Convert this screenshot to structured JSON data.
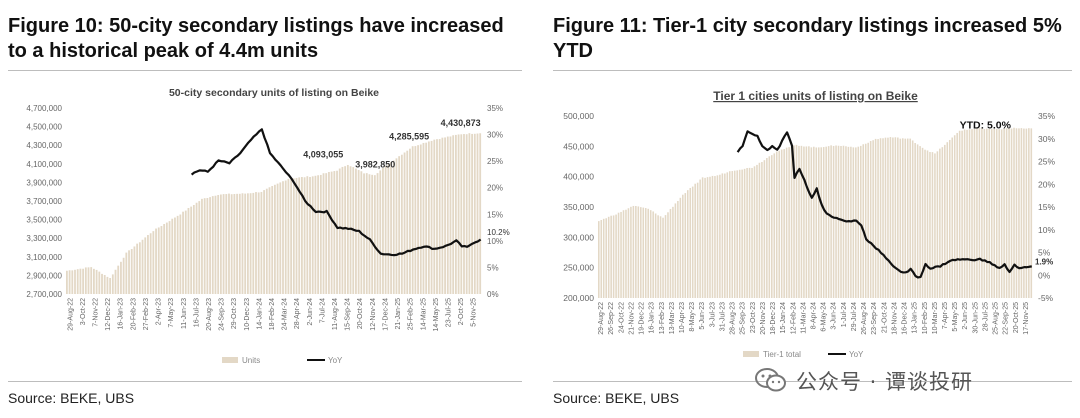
{
  "left": {
    "figure_title": "Figure 10: 50-city secondary listings have increased to a historical peak of 4.4m units",
    "source": "Source: BEKE, UBS"
  },
  "right": {
    "figure_title": "Figure 11: Tier-1 city secondary listings increased 5% YTD",
    "source": "Source: BEKE, UBS"
  },
  "watermark": "公众号 · 谭谈投研",
  "colors": {
    "bar": "#e3d8c6",
    "line": "#111111",
    "axis_text": "#666666"
  },
  "chart_data": [
    {
      "type": "bar+line",
      "title": "50-city secondary units of listing on Beike",
      "x_tick_labels": [
        "29-Aug-22",
        "3-Oct-22",
        "7-Nov-22",
        "12-Dec-22",
        "16-Jan-23",
        "20-Feb-23",
        "27-Feb-23",
        "2-Apr-23",
        "7-May-23",
        "11-Jun-23",
        "16-Jul-23",
        "20-Aug-23",
        "24-Sep-23",
        "29-Oct-23",
        "10-Dec-23",
        "14-Jan-24",
        "18-Feb-24",
        "24-Mar-24",
        "28-Apr-24",
        "2-Jun-24",
        "7-Jul-24",
        "11-Aug-24",
        "15-Sep-24",
        "20-Oct-24",
        "12-Nov-24",
        "17-Dec-24",
        "21-Jan-25",
        "25-Feb-25",
        "14-Mar-25",
        "14-May-25",
        "23-Jul-25",
        "2-Oct-25",
        "5-Nov-25"
      ],
      "y_left_ticks": [
        "2,700,000",
        "2,900,000",
        "3,100,000",
        "3,300,000",
        "3,500,000",
        "3,700,000",
        "3,900,000",
        "4,100,000",
        "4,300,000",
        "4,500,000",
        "4,700,000"
      ],
      "y_left_range": [
        2700000,
        4700000
      ],
      "y_right_ticks": [
        "0%",
        "5%",
        "10%",
        "15%",
        "20%",
        "25%",
        "30%",
        "35%"
      ],
      "y_right_range": [
        0,
        35
      ],
      "units_anchors": [
        [
          0,
          2950000
        ],
        [
          9,
          2990000
        ],
        [
          16,
          2870000
        ],
        [
          22,
          3140000
        ],
        [
          32,
          3380000
        ],
        [
          42,
          3560000
        ],
        [
          50,
          3720000
        ],
        [
          56,
          3770000
        ],
        [
          66,
          3780000
        ],
        [
          72,
          3800000
        ],
        [
          82,
          3940000
        ],
        [
          92,
          3970000
        ],
        [
          100,
          4030000
        ],
        [
          104,
          4093055
        ],
        [
          110,
          4000000
        ],
        [
          114,
          3982850
        ],
        [
          120,
          4120000
        ],
        [
          128,
          4285595
        ],
        [
          136,
          4360000
        ],
        [
          146,
          4420000
        ],
        [
          153,
          4430873
        ]
      ],
      "yoy_start_index": 46,
      "yoy_anchors": [
        [
          46,
          22.6
        ],
        [
          49,
          23.3
        ],
        [
          52,
          23.0
        ],
        [
          56,
          25.1
        ],
        [
          60,
          24.6
        ],
        [
          64,
          26.5
        ],
        [
          68,
          29.0
        ],
        [
          70,
          30.0
        ],
        [
          72,
          31.0
        ],
        [
          75,
          26.5
        ],
        [
          80,
          23.5
        ],
        [
          84,
          21.0
        ],
        [
          88,
          17.5
        ],
        [
          92,
          15.5
        ],
        [
          96,
          15.5
        ],
        [
          100,
          12.5
        ],
        [
          104,
          12.3
        ],
        [
          108,
          11.8
        ],
        [
          112,
          10.2
        ],
        [
          116,
          7.6
        ],
        [
          120,
          7.4
        ],
        [
          124,
          7.6
        ],
        [
          128,
          8.4
        ],
        [
          132,
          9.0
        ],
        [
          136,
          8.5
        ],
        [
          140,
          9.0
        ],
        [
          144,
          10.0
        ],
        [
          146,
          9.0
        ],
        [
          148,
          8.8
        ],
        [
          150,
          9.6
        ],
        [
          153,
          10.2
        ]
      ],
      "data_labels": [
        {
          "text": "4,093,055",
          "index": 104,
          "value": 4093055
        },
        {
          "text": "3,982,850",
          "index": 114,
          "value": 3982850
        },
        {
          "text": "4,285,595",
          "index": 128,
          "value": 4285595
        },
        {
          "text": "4,430,873",
          "index": 153,
          "value": 4430873
        }
      ],
      "yoy_end_label": "10.2%",
      "n": 154,
      "legend": [
        {
          "name": "Units",
          "type": "bar"
        },
        {
          "name": "YoY",
          "type": "line"
        }
      ]
    },
    {
      "type": "bar+line",
      "title": "Tier 1 cities  units of listing on Beike",
      "x_tick_labels": [
        "29-Aug-22",
        "26-Sep-22",
        "24-Oct-22",
        "21-Nov-22",
        "19-Dec-22",
        "16-Jan-23",
        "13-Feb-23",
        "13-Mar-23",
        "10-Apr-23",
        "8-May-23",
        "5-Jun-23",
        "3-Jul-23",
        "31-Jul-23",
        "28-Aug-23",
        "25-Sep-23",
        "23-Oct-23",
        "20-Nov-23",
        "18-Dec-23",
        "15-Jan-24",
        "12-Feb-24",
        "11-Mar-24",
        "8-Apr-24",
        "6-May-24",
        "3-Jun-24",
        "1-Jul-24",
        "29-Jul-24",
        "26-Aug-24",
        "23-Sep-24",
        "21-Oct-24",
        "18-Nov-24",
        "16-Dec-24",
        "13-Jan-25",
        "10-Feb-25",
        "10-Mar-25",
        "7-Apr-25",
        "5-May-25",
        "2-Jun-25",
        "30-Jun-25",
        "28-Jul-25",
        "25-Aug-25",
        "22-Sep-25",
        "20-Oct-25",
        "17-Nov-25"
      ],
      "y_left_ticks": [
        "200,000",
        "250,000",
        "300,000",
        "350,000",
        "400,000",
        "450,000",
        "500,000"
      ],
      "y_left_range": [
        200000,
        500000
      ],
      "y_right_ticks": [
        "-5%",
        "0%",
        "5%",
        "10%",
        "15%",
        "20%",
        "25%",
        "30%",
        "35%"
      ],
      "y_right_range": [
        -5,
        35
      ],
      "units_anchors": [
        [
          0,
          327000
        ],
        [
          8,
          340000
        ],
        [
          14,
          352000
        ],
        [
          20,
          347000
        ],
        [
          26,
          332000
        ],
        [
          34,
          370000
        ],
        [
          42,
          398000
        ],
        [
          48,
          402000
        ],
        [
          54,
          410000
        ],
        [
          62,
          415000
        ],
        [
          66,
          425000
        ],
        [
          72,
          442000
        ],
        [
          80,
          452000
        ],
        [
          88,
          448000
        ],
        [
          96,
          452000
        ],
        [
          104,
          448000
        ],
        [
          112,
          462000
        ],
        [
          118,
          465000
        ],
        [
          126,
          462000
        ],
        [
          132,
          445000
        ],
        [
          136,
          438000
        ],
        [
          142,
          460000
        ],
        [
          146,
          476000
        ],
        [
          154,
          480000
        ],
        [
          160,
          478000
        ],
        [
          168,
          480000
        ],
        [
          175,
          479000
        ]
      ],
      "yoy_start_index": 56,
      "yoy_anchors": [
        [
          56,
          27.0
        ],
        [
          58,
          28.5
        ],
        [
          60,
          31.5
        ],
        [
          62,
          31.0
        ],
        [
          64,
          30.5
        ],
        [
          66,
          28.5
        ],
        [
          68,
          27.5
        ],
        [
          70,
          28.5
        ],
        [
          72,
          27.5
        ],
        [
          74,
          29.5
        ],
        [
          76,
          31.5
        ],
        [
          78,
          28.5
        ],
        [
          79,
          21.5
        ],
        [
          81,
          23.5
        ],
        [
          84,
          19.5
        ],
        [
          86,
          17.0
        ],
        [
          88,
          19.0
        ],
        [
          90,
          15.5
        ],
        [
          92,
          13.5
        ],
        [
          96,
          12.5
        ],
        [
          100,
          11.8
        ],
        [
          104,
          12.0
        ],
        [
          106,
          11.0
        ],
        [
          108,
          8.0
        ],
        [
          110,
          7.0
        ],
        [
          114,
          5.0
        ],
        [
          118,
          2.5
        ],
        [
          122,
          0.8
        ],
        [
          124,
          0.5
        ],
        [
          126,
          1.3
        ],
        [
          128,
          -0.2
        ],
        [
          130,
          -0.5
        ],
        [
          132,
          2.5
        ],
        [
          134,
          1.5
        ],
        [
          138,
          2.0
        ],
        [
          142,
          3.2
        ],
        [
          146,
          3.5
        ],
        [
          150,
          3.4
        ],
        [
          154,
          3.5
        ],
        [
          158,
          2.8
        ],
        [
          162,
          1.5
        ],
        [
          164,
          2.3
        ],
        [
          166,
          0.8
        ],
        [
          168,
          2.3
        ],
        [
          170,
          1.5
        ],
        [
          175,
          1.9
        ]
      ],
      "ytd_label": "YTD: 5.0%",
      "yoy_end_label": "1.9%",
      "n": 176,
      "legend": [
        {
          "name": "Tier-1 total",
          "type": "bar"
        },
        {
          "name": "YoY",
          "type": "line"
        }
      ]
    }
  ]
}
